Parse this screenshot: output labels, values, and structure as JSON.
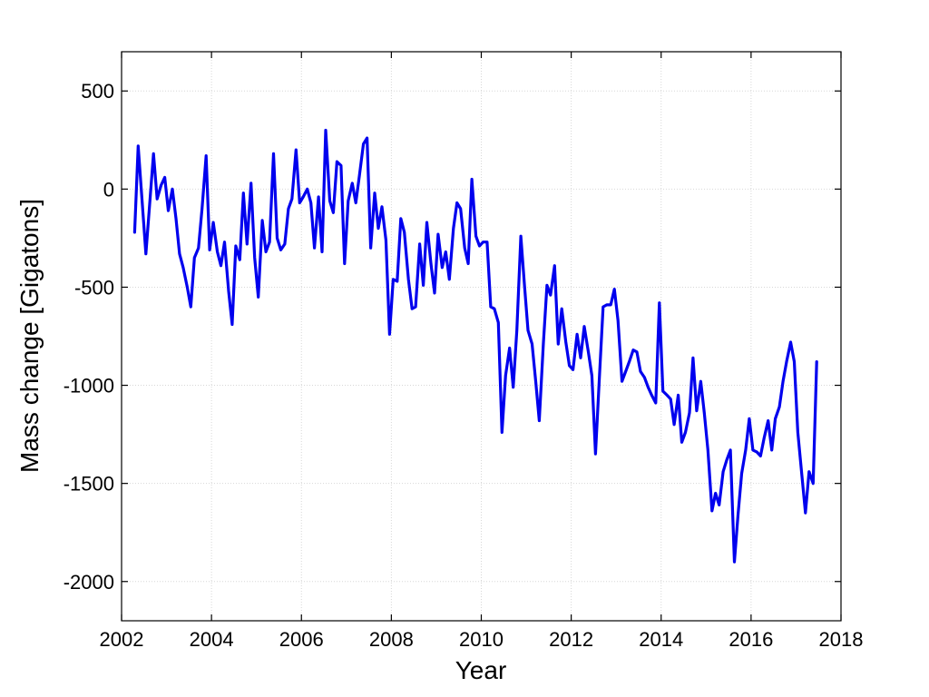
{
  "chart_data": {
    "type": "line",
    "title": "",
    "xlabel": "Year",
    "ylabel": "Mass change [Gigatons]",
    "xlim": [
      2002,
      2018
    ],
    "ylim": [
      -2200,
      700
    ],
    "xticks": [
      2002,
      2004,
      2006,
      2008,
      2010,
      2012,
      2014,
      2016,
      2018
    ],
    "yticks": [
      500,
      0,
      -500,
      -1000,
      -1500,
      -2000
    ],
    "grid": true,
    "legend": "none",
    "color": "#0000ee",
    "x": [
      2002.29,
      2002.37,
      2002.54,
      2002.71,
      2002.79,
      2002.88,
      2002.96,
      2003.04,
      2003.13,
      2003.21,
      2003.29,
      2003.37,
      2003.46,
      2003.54,
      2003.62,
      2003.71,
      2003.79,
      2003.88,
      2003.96,
      2004.04,
      2004.13,
      2004.21,
      2004.29,
      2004.38,
      2004.46,
      2004.54,
      2004.63,
      2004.71,
      2004.79,
      2004.88,
      2004.96,
      2005.04,
      2005.13,
      2005.21,
      2005.29,
      2005.38,
      2005.46,
      2005.54,
      2005.63,
      2005.71,
      2005.79,
      2005.88,
      2005.96,
      2006.04,
      2006.13,
      2006.21,
      2006.29,
      2006.38,
      2006.46,
      2006.54,
      2006.63,
      2006.71,
      2006.79,
      2006.88,
      2006.96,
      2007.04,
      2007.13,
      2007.21,
      2007.29,
      2007.38,
      2007.46,
      2007.54,
      2007.63,
      2007.71,
      2007.79,
      2007.88,
      2007.96,
      2008.04,
      2008.13,
      2008.21,
      2008.29,
      2008.38,
      2008.46,
      2008.54,
      2008.63,
      2008.71,
      2008.79,
      2008.88,
      2008.96,
      2009.04,
      2009.13,
      2009.21,
      2009.29,
      2009.38,
      2009.46,
      2009.54,
      2009.63,
      2009.71,
      2009.79,
      2009.88,
      2009.96,
      2010.04,
      2010.13,
      2010.21,
      2010.29,
      2010.38,
      2010.46,
      2010.54,
      2010.63,
      2010.71,
      2010.79,
      2010.88,
      2010.96,
      2011.04,
      2011.13,
      2011.21,
      2011.29,
      2011.38,
      2011.46,
      2011.54,
      2011.63,
      2011.71,
      2011.79,
      2011.88,
      2011.96,
      2012.04,
      2012.13,
      2012.21,
      2012.29,
      2012.38,
      2012.46,
      2012.54,
      2012.63,
      2012.71,
      2012.79,
      2012.88,
      2012.96,
      2013.04,
      2013.13,
      2013.21,
      2013.29,
      2013.38,
      2013.46,
      2013.54,
      2013.63,
      2013.71,
      2013.79,
      2013.88,
      2013.96,
      2014.04,
      2014.13,
      2014.21,
      2014.29,
      2014.38,
      2014.46,
      2014.54,
      2014.63,
      2014.71,
      2014.79,
      2014.88,
      2014.96,
      2015.04,
      2015.13,
      2015.21,
      2015.29,
      2015.38,
      2015.46,
      2015.54,
      2015.63,
      2015.71,
      2015.79,
      2015.88,
      2015.96,
      2016.04,
      2016.13,
      2016.21,
      2016.29,
      2016.38,
      2016.46,
      2016.54,
      2016.63,
      2016.71,
      2016.79,
      2016.88,
      2016.96,
      2017.04,
      2017.13,
      2017.21,
      2017.29,
      2017.38,
      2017.46
    ],
    "y": [
      -220,
      220,
      -330,
      180,
      -50,
      20,
      60,
      -110,
      0,
      -150,
      -330,
      -400,
      -500,
      -600,
      -350,
      -300,
      -100,
      170,
      -310,
      -170,
      -320,
      -390,
      -270,
      -520,
      -690,
      -290,
      -360,
      -20,
      -280,
      30,
      -350,
      -550,
      -160,
      -320,
      -270,
      180,
      -250,
      -310,
      -280,
      -100,
      -50,
      200,
      -70,
      -40,
      0,
      -70,
      -300,
      -40,
      -320,
      300,
      -60,
      -120,
      140,
      120,
      -380,
      -60,
      30,
      -70,
      70,
      230,
      260,
      -300,
      -20,
      -200,
      -90,
      -260,
      -740,
      -460,
      -470,
      -150,
      -220,
      -460,
      -610,
      -600,
      -280,
      -490,
      -170,
      -380,
      -530,
      -230,
      -400,
      -320,
      -460,
      -200,
      -70,
      -100,
      -300,
      -380,
      50,
      -240,
      -290,
      -270,
      -270,
      -600,
      -610,
      -680,
      -1240,
      -950,
      -810,
      -1010,
      -720,
      -240,
      -490,
      -720,
      -790,
      -980,
      -1180,
      -790,
      -490,
      -540,
      -390,
      -790,
      -610,
      -780,
      -900,
      -920,
      -740,
      -860,
      -700,
      -830,
      -950,
      -1350,
      -950,
      -600,
      -590,
      -590,
      -510,
      -670,
      -980,
      -930,
      -880,
      -820,
      -830,
      -930,
      -960,
      -1010,
      -1050,
      -1090,
      -580,
      -1030,
      -1050,
      -1070,
      -1200,
      -1050,
      -1290,
      -1240,
      -1140,
      -860,
      -1130,
      -980,
      -1140,
      -1330,
      -1640,
      -1550,
      -1610,
      -1440,
      -1380,
      -1330,
      -1900,
      -1660,
      -1450,
      -1330,
      -1170,
      -1330,
      -1340,
      -1360,
      -1270,
      -1180,
      -1330,
      -1170,
      -1110,
      -980,
      -880,
      -780,
      -880,
      -1240,
      -1460,
      -1650,
      -1440,
      -1500,
      -880
    ]
  }
}
